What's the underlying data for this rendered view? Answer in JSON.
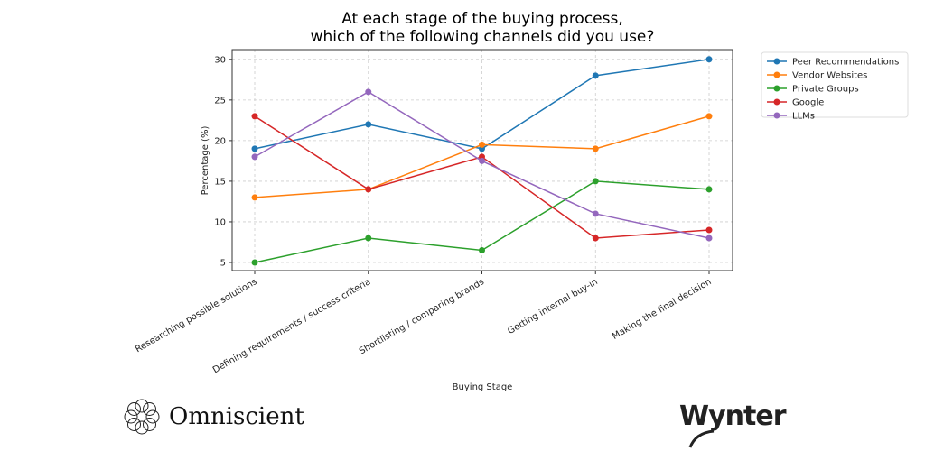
{
  "chart_data": {
    "type": "line",
    "title": "At each stage of the buying process,\nwhich of the following channels did you use?",
    "title_lines": [
      "At each stage of the buying process,",
      "which of the following channels did you use?"
    ],
    "xlabel": "Buying Stage",
    "ylabel": "Percentage (%)",
    "categories": [
      "Researching possible solutions",
      "Defining requirements / success criteria",
      "Shortlisting / comparing brands",
      "Getting internal buy-in",
      "Making the final decision"
    ],
    "ylim": [
      4.0,
      31.2
    ],
    "yticks": [
      5,
      10,
      15,
      20,
      25,
      30
    ],
    "grid": true,
    "legend_position": "outside-top-right",
    "series": [
      {
        "name": "Peer Recommendations",
        "color": "#1f77b4",
        "values": [
          19,
          22,
          19,
          28,
          30
        ]
      },
      {
        "name": "Vendor Websites",
        "color": "#ff7f0e",
        "values": [
          13,
          14,
          19.5,
          19,
          23
        ]
      },
      {
        "name": "Private Groups",
        "color": "#2ca02c",
        "values": [
          5,
          8,
          6.5,
          15,
          14
        ]
      },
      {
        "name": "Google",
        "color": "#d62728",
        "values": [
          23,
          14,
          18,
          8,
          9
        ]
      },
      {
        "name": "LLMs",
        "color": "#9467bd",
        "values": [
          18,
          26,
          17.5,
          11,
          8
        ]
      }
    ]
  },
  "logos": {
    "left": "Omniscient",
    "right": "Wynter"
  }
}
